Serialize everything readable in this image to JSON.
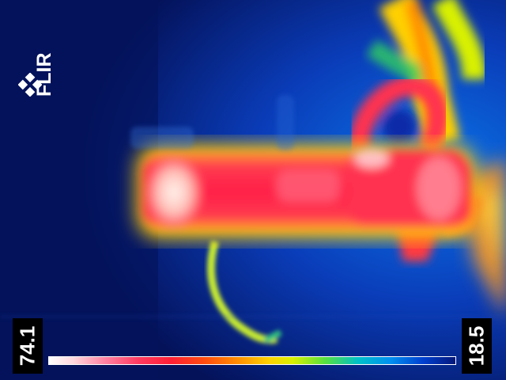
{
  "brand": {
    "logo_text": "FLIR"
  },
  "scale": {
    "max_temp": "74.1",
    "min_temp": "18.5",
    "palette": "rainbow-hc"
  },
  "colors": {
    "background": "#04125a",
    "hot": "#ff2a4a",
    "hottest": "#ffe0e0",
    "warm": "#ffb000",
    "mid": "#30d060",
    "cool": "#0a5ad8"
  }
}
